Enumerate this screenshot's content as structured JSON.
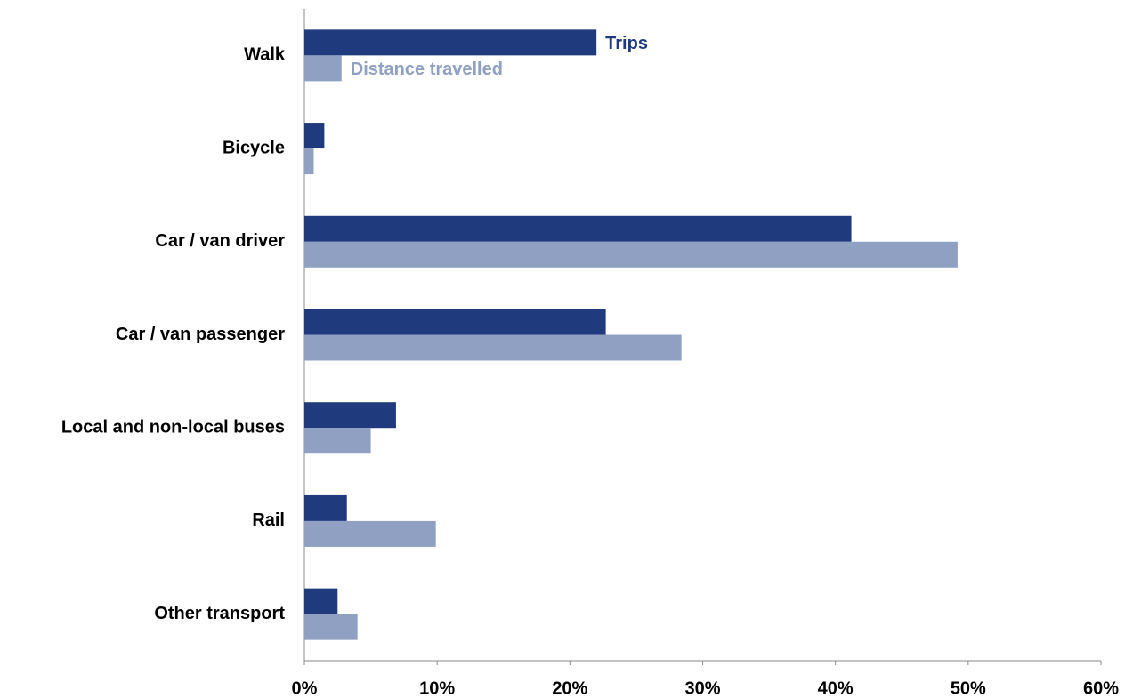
{
  "chart_data": {
    "type": "bar",
    "orientation": "horizontal",
    "categories": [
      "Walk",
      "Bicycle",
      "Car / van driver",
      "Car / van passenger",
      "Local and non-local buses",
      "Rail",
      "Other transport"
    ],
    "series": [
      {
        "name": "Trips",
        "color": "#1f3a7d",
        "values": [
          22.0,
          1.5,
          41.2,
          22.7,
          6.9,
          3.2,
          2.5
        ]
      },
      {
        "name": "Distance travelled",
        "color": "#8fa0c3",
        "values": [
          2.8,
          0.7,
          49.2,
          28.4,
          5.0,
          9.9,
          4.0
        ]
      }
    ],
    "xlim": [
      0,
      60
    ],
    "xticks": [
      {
        "value": 0,
        "label": "0%"
      },
      {
        "value": 10,
        "label": "10%"
      },
      {
        "value": 20,
        "label": "20%"
      },
      {
        "value": 30,
        "label": "30%"
      },
      {
        "value": 40,
        "label": "40%"
      },
      {
        "value": 50,
        "label": "50%"
      },
      {
        "value": 60,
        "label": "60%"
      }
    ],
    "grid": false,
    "legend": "inline"
  }
}
